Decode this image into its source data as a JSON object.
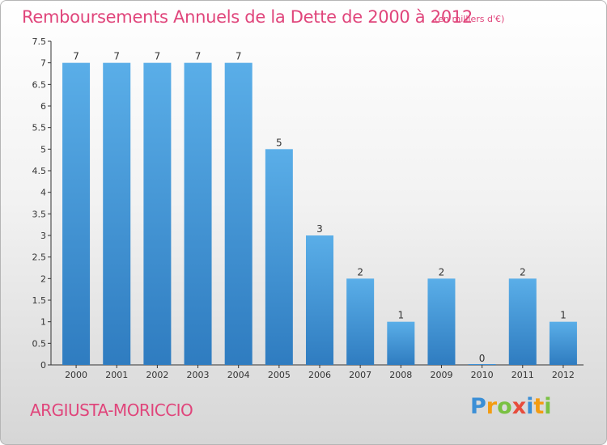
{
  "chart_data": {
    "type": "bar",
    "title": "Remboursements Annuels de la Dette de 2000 à 2012",
    "unit": "(en milliers d'€)",
    "categories": [
      "2000",
      "2001",
      "2002",
      "2003",
      "2004",
      "2005",
      "2006",
      "2007",
      "2008",
      "2009",
      "2010",
      "2011",
      "2012"
    ],
    "values": [
      7,
      7,
      7,
      7,
      7,
      5,
      3,
      2,
      1,
      2,
      0,
      2,
      1
    ],
    "data_labels": [
      "7",
      "7",
      "7",
      "7",
      "7",
      "5",
      "3",
      "2",
      "1",
      "2",
      "0",
      "2",
      "1"
    ],
    "ylim": [
      0,
      7.5
    ],
    "y_ticks": [
      "0",
      "0.5",
      "1",
      "1.5",
      "2",
      "2.5",
      "3",
      "3.5",
      "4",
      "4.5",
      "5",
      "5.5",
      "6",
      "6.5",
      "7",
      "7.5"
    ],
    "grid": false,
    "bar_color": "#4a9fdf"
  },
  "commune": "ARGIUSTA-MORICCIO",
  "logo": {
    "letters": [
      "P",
      "r",
      "o",
      "x",
      "i",
      "t",
      "i"
    ],
    "colors": [
      "#3b8fd6",
      "#f39c12",
      "#7ac143",
      "#e74c3c",
      "#3b8fd6",
      "#f39c12",
      "#7ac143"
    ]
  }
}
